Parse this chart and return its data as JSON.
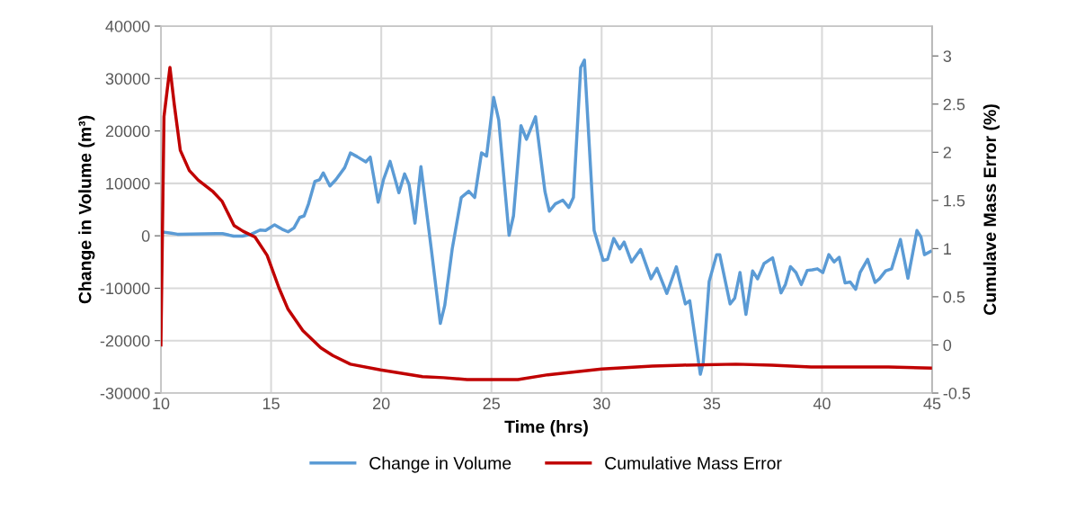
{
  "chart_data": {
    "type": "line",
    "xlabel": "Time (hrs)",
    "ylabel": "Change in Volume (m³)",
    "y2label": "Cumulave Mass Error (%)",
    "xlim": [
      10,
      45
    ],
    "xticks": [
      10,
      15,
      20,
      25,
      30,
      35,
      40,
      45
    ],
    "ylim": [
      -30000,
      40000
    ],
    "yticks": [
      -30000,
      -20000,
      -10000,
      0,
      10000,
      20000,
      30000,
      40000
    ],
    "y2lim": [
      -0.5,
      3.31
    ],
    "y2ticks": [
      -0.5,
      0,
      0.5,
      1,
      1.5,
      2,
      2.5,
      3
    ],
    "grid": true,
    "legend": "bottom",
    "marker": "none",
    "line_style": "solid",
    "series": [
      {
        "name": "Change in Volume",
        "color": "#5b9bd5",
        "x": [
          10.07,
          10.47,
          10.75,
          12.5,
          12.8,
          13.3,
          13.7,
          14.1,
          14.5,
          14.75,
          15.16,
          15.5,
          15.77,
          16.04,
          16.3,
          16.5,
          16.7,
          16.99,
          17.2,
          17.37,
          17.67,
          17.94,
          18.34,
          18.6,
          18.9,
          19.3,
          19.5,
          19.86,
          20.1,
          20.4,
          20.8,
          21.06,
          21.26,
          21.53,
          21.8,
          22.27,
          22.68,
          22.88,
          23.22,
          23.63,
          23.97,
          24.24,
          24.55,
          24.78,
          25.1,
          25.33,
          25.8,
          26.0,
          26.34,
          26.59,
          27.0,
          27.43,
          27.63,
          27.9,
          28.24,
          28.51,
          28.72,
          29.05,
          29.22,
          29.66,
          30.07,
          30.27,
          30.55,
          30.82,
          31.02,
          31.36,
          31.77,
          32.24,
          32.51,
          32.96,
          33.39,
          33.8,
          34.0,
          34.48,
          34.61,
          34.88,
          35.22,
          35.36,
          35.83,
          36.04,
          36.28,
          36.55,
          36.85,
          37.08,
          37.37,
          37.76,
          38.14,
          38.34,
          38.57,
          38.82,
          39.06,
          39.33,
          39.56,
          39.79,
          40.04,
          40.31,
          40.55,
          40.78,
          41.05,
          41.28,
          41.53,
          41.73,
          42.07,
          42.41,
          42.61,
          42.89,
          43.16,
          43.56,
          43.9,
          44.31,
          44.49,
          44.65,
          44.92
        ],
        "values": [
          700,
          500,
          300,
          400,
          400,
          -50,
          -50,
          300,
          1100,
          1000,
          2100,
          1250,
          750,
          1500,
          3500,
          3800,
          6100,
          10400,
          10700,
          12000,
          9500,
          10700,
          13000,
          15800,
          15100,
          14100,
          15000,
          6400,
          10700,
          14200,
          8200,
          11800,
          9800,
          2400,
          13200,
          -2500,
          -16700,
          -13300,
          -2500,
          7300,
          8500,
          7300,
          15800,
          15200,
          26400,
          22100,
          100,
          3800,
          21000,
          18400,
          22700,
          8400,
          4700,
          6100,
          6800,
          5400,
          7300,
          32100,
          33500,
          1000,
          -4700,
          -4500,
          -500,
          -2500,
          -1200,
          -5000,
          -2600,
          -8200,
          -6200,
          -11000,
          -5900,
          -13000,
          -12400,
          -26400,
          -24200,
          -8700,
          -3600,
          -3600,
          -13000,
          -11900,
          -7000,
          -15000,
          -6700,
          -8200,
          -5300,
          -4200,
          -10900,
          -9300,
          -5900,
          -7000,
          -9300,
          -6600,
          -6500,
          -6300,
          -7000,
          -3600,
          -5000,
          -4100,
          -9000,
          -8800,
          -10200,
          -7000,
          -4500,
          -8900,
          -8200,
          -6700,
          -6300,
          -700,
          -8100,
          1000,
          -200,
          -3600,
          -3000
        ]
      },
      {
        "name": "Cumulative Mass Error",
        "color": "#c00000",
        "axis": "y2",
        "x": [
          10.0,
          10.14,
          10.41,
          10.61,
          10.88,
          11.29,
          11.7,
          12.37,
          12.78,
          13.32,
          13.73,
          14.27,
          14.82,
          15.36,
          15.77,
          16.44,
          17.26,
          17.8,
          18.6,
          19.97,
          21.87,
          22.82,
          23.9,
          26.2,
          27.56,
          30.0,
          32.3,
          33.67,
          36.1,
          37.73,
          39.5,
          43.02,
          44.92
        ],
        "values": [
          0.0,
          2.37,
          2.88,
          2.49,
          2.02,
          1.81,
          1.71,
          1.59,
          1.49,
          1.24,
          1.18,
          1.12,
          0.93,
          0.59,
          0.37,
          0.15,
          -0.03,
          -0.11,
          -0.2,
          -0.26,
          -0.33,
          -0.34,
          -0.36,
          -0.36,
          -0.31,
          -0.25,
          -0.22,
          -0.21,
          -0.2,
          -0.21,
          -0.23,
          -0.23,
          -0.24
        ]
      }
    ]
  }
}
